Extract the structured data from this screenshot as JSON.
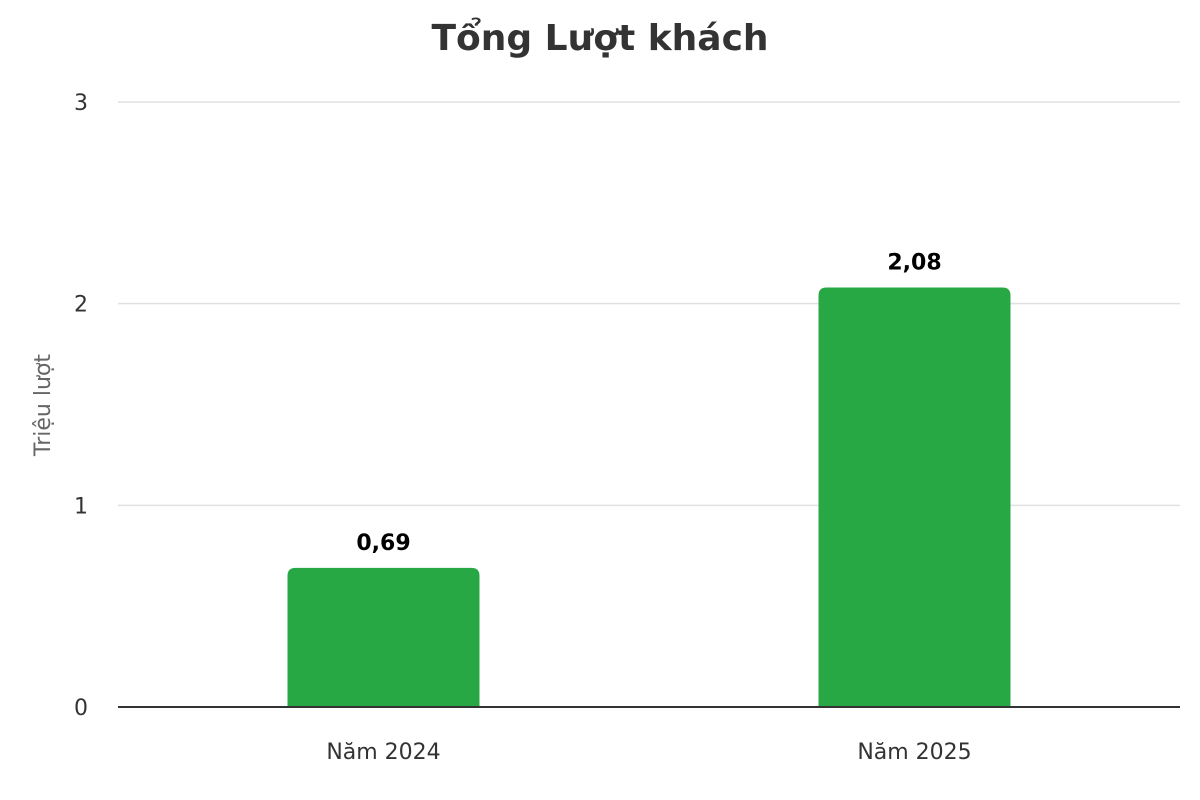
{
  "chart_data": {
    "type": "bar",
    "title": "Tổng Lượt khách",
    "ylabel": "Triệu lượt",
    "xlabel": "",
    "categories": [
      "Năm 2024",
      "Năm 2025"
    ],
    "values": [
      0.69,
      2.08
    ],
    "data_labels": [
      "0,69",
      "2,08"
    ],
    "ylim": [
      0,
      3
    ],
    "yticks": [
      "0",
      "1",
      "2",
      "3"
    ],
    "grid": true,
    "legend": "none",
    "colors": {
      "bar": "#28a745"
    }
  }
}
